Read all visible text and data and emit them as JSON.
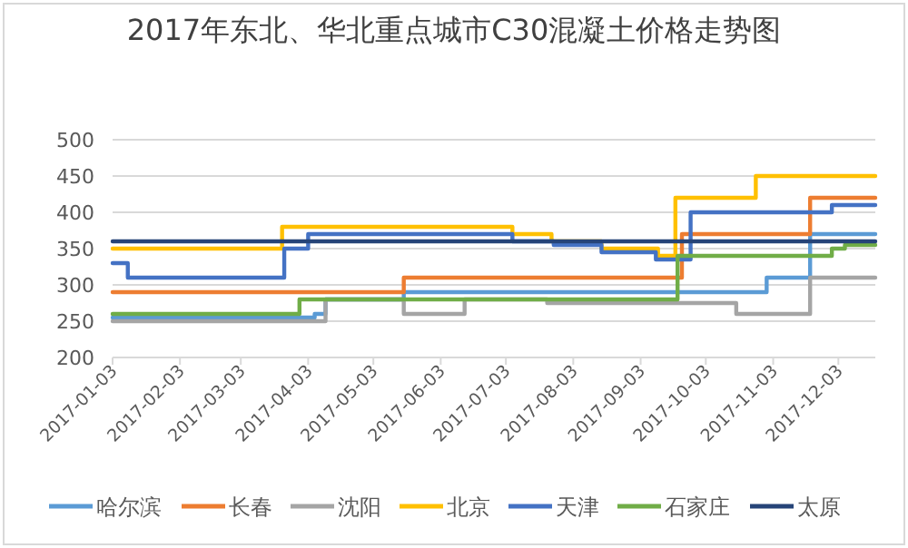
{
  "chart_data": {
    "type": "step",
    "title": "2017年东北、华北重点城市C30混凝土价格走势图",
    "ylim": [
      200,
      500
    ],
    "yticks": [
      200,
      250,
      300,
      350,
      400,
      450,
      500
    ],
    "xlim": [
      "2017-01-03",
      "2017-12-20"
    ],
    "xticks": [
      "2017-01-03",
      "2017-02-03",
      "2017-03-03",
      "2017-04-03",
      "2017-05-03",
      "2017-06-03",
      "2017-07-03",
      "2017-08-03",
      "2017-09-03",
      "2017-10-03",
      "2017-11-03",
      "2017-12-03"
    ],
    "grid": "y",
    "legend": "bottom",
    "series": [
      {
        "name": "哈尔滨",
        "color": "#5b9bd5",
        "x": [
          "2017-01-03",
          "2017-04-06",
          "2017-04-11",
          "2017-05-17",
          "2017-10-31",
          "2017-11-20",
          "2017-12-20"
        ],
        "values": [
          255,
          260,
          280,
          290,
          310,
          370,
          370
        ]
      },
      {
        "name": "长春",
        "color": "#ed7d31",
        "x": [
          "2017-01-03",
          "2017-05-17",
          "2017-09-22",
          "2017-11-20",
          "2017-12-20"
        ],
        "values": [
          290,
          310,
          370,
          420,
          420
        ]
      },
      {
        "name": "沈阳",
        "color": "#a5a5a5",
        "x": [
          "2017-01-03",
          "2017-04-11",
          "2017-05-17",
          "2017-06-14",
          "2017-07-22",
          "2017-10-17",
          "2017-11-20",
          "2017-12-20"
        ],
        "values": [
          250,
          280,
          260,
          280,
          275,
          260,
          310,
          310
        ]
      },
      {
        "name": "北京",
        "color": "#ffc000",
        "x": [
          "2017-01-03",
          "2017-03-22",
          "2017-07-06",
          "2017-07-24",
          "2017-08-16",
          "2017-09-11",
          "2017-09-19",
          "2017-10-26",
          "2017-12-20"
        ],
        "values": [
          350,
          380,
          370,
          360,
          350,
          340,
          420,
          450,
          450
        ]
      },
      {
        "name": "天津",
        "color": "#4472c4",
        "x": [
          "2017-01-03",
          "2017-01-10",
          "2017-03-23",
          "2017-04-03",
          "2017-07-06",
          "2017-07-25",
          "2017-08-16",
          "2017-09-10",
          "2017-09-26",
          "2017-11-30",
          "2017-12-20"
        ],
        "values": [
          330,
          310,
          350,
          370,
          360,
          355,
          345,
          335,
          400,
          410,
          410
        ]
      },
      {
        "name": "石家庄",
        "color": "#70ad47",
        "x": [
          "2017-01-03",
          "2017-03-30",
          "2017-09-20",
          "2017-11-30",
          "2017-12-06",
          "2017-12-20"
        ],
        "values": [
          260,
          280,
          340,
          350,
          355,
          355
        ]
      },
      {
        "name": "太原",
        "color": "#264478",
        "x": [
          "2017-01-03",
          "2017-12-20"
        ],
        "values": [
          360,
          360
        ]
      }
    ]
  }
}
